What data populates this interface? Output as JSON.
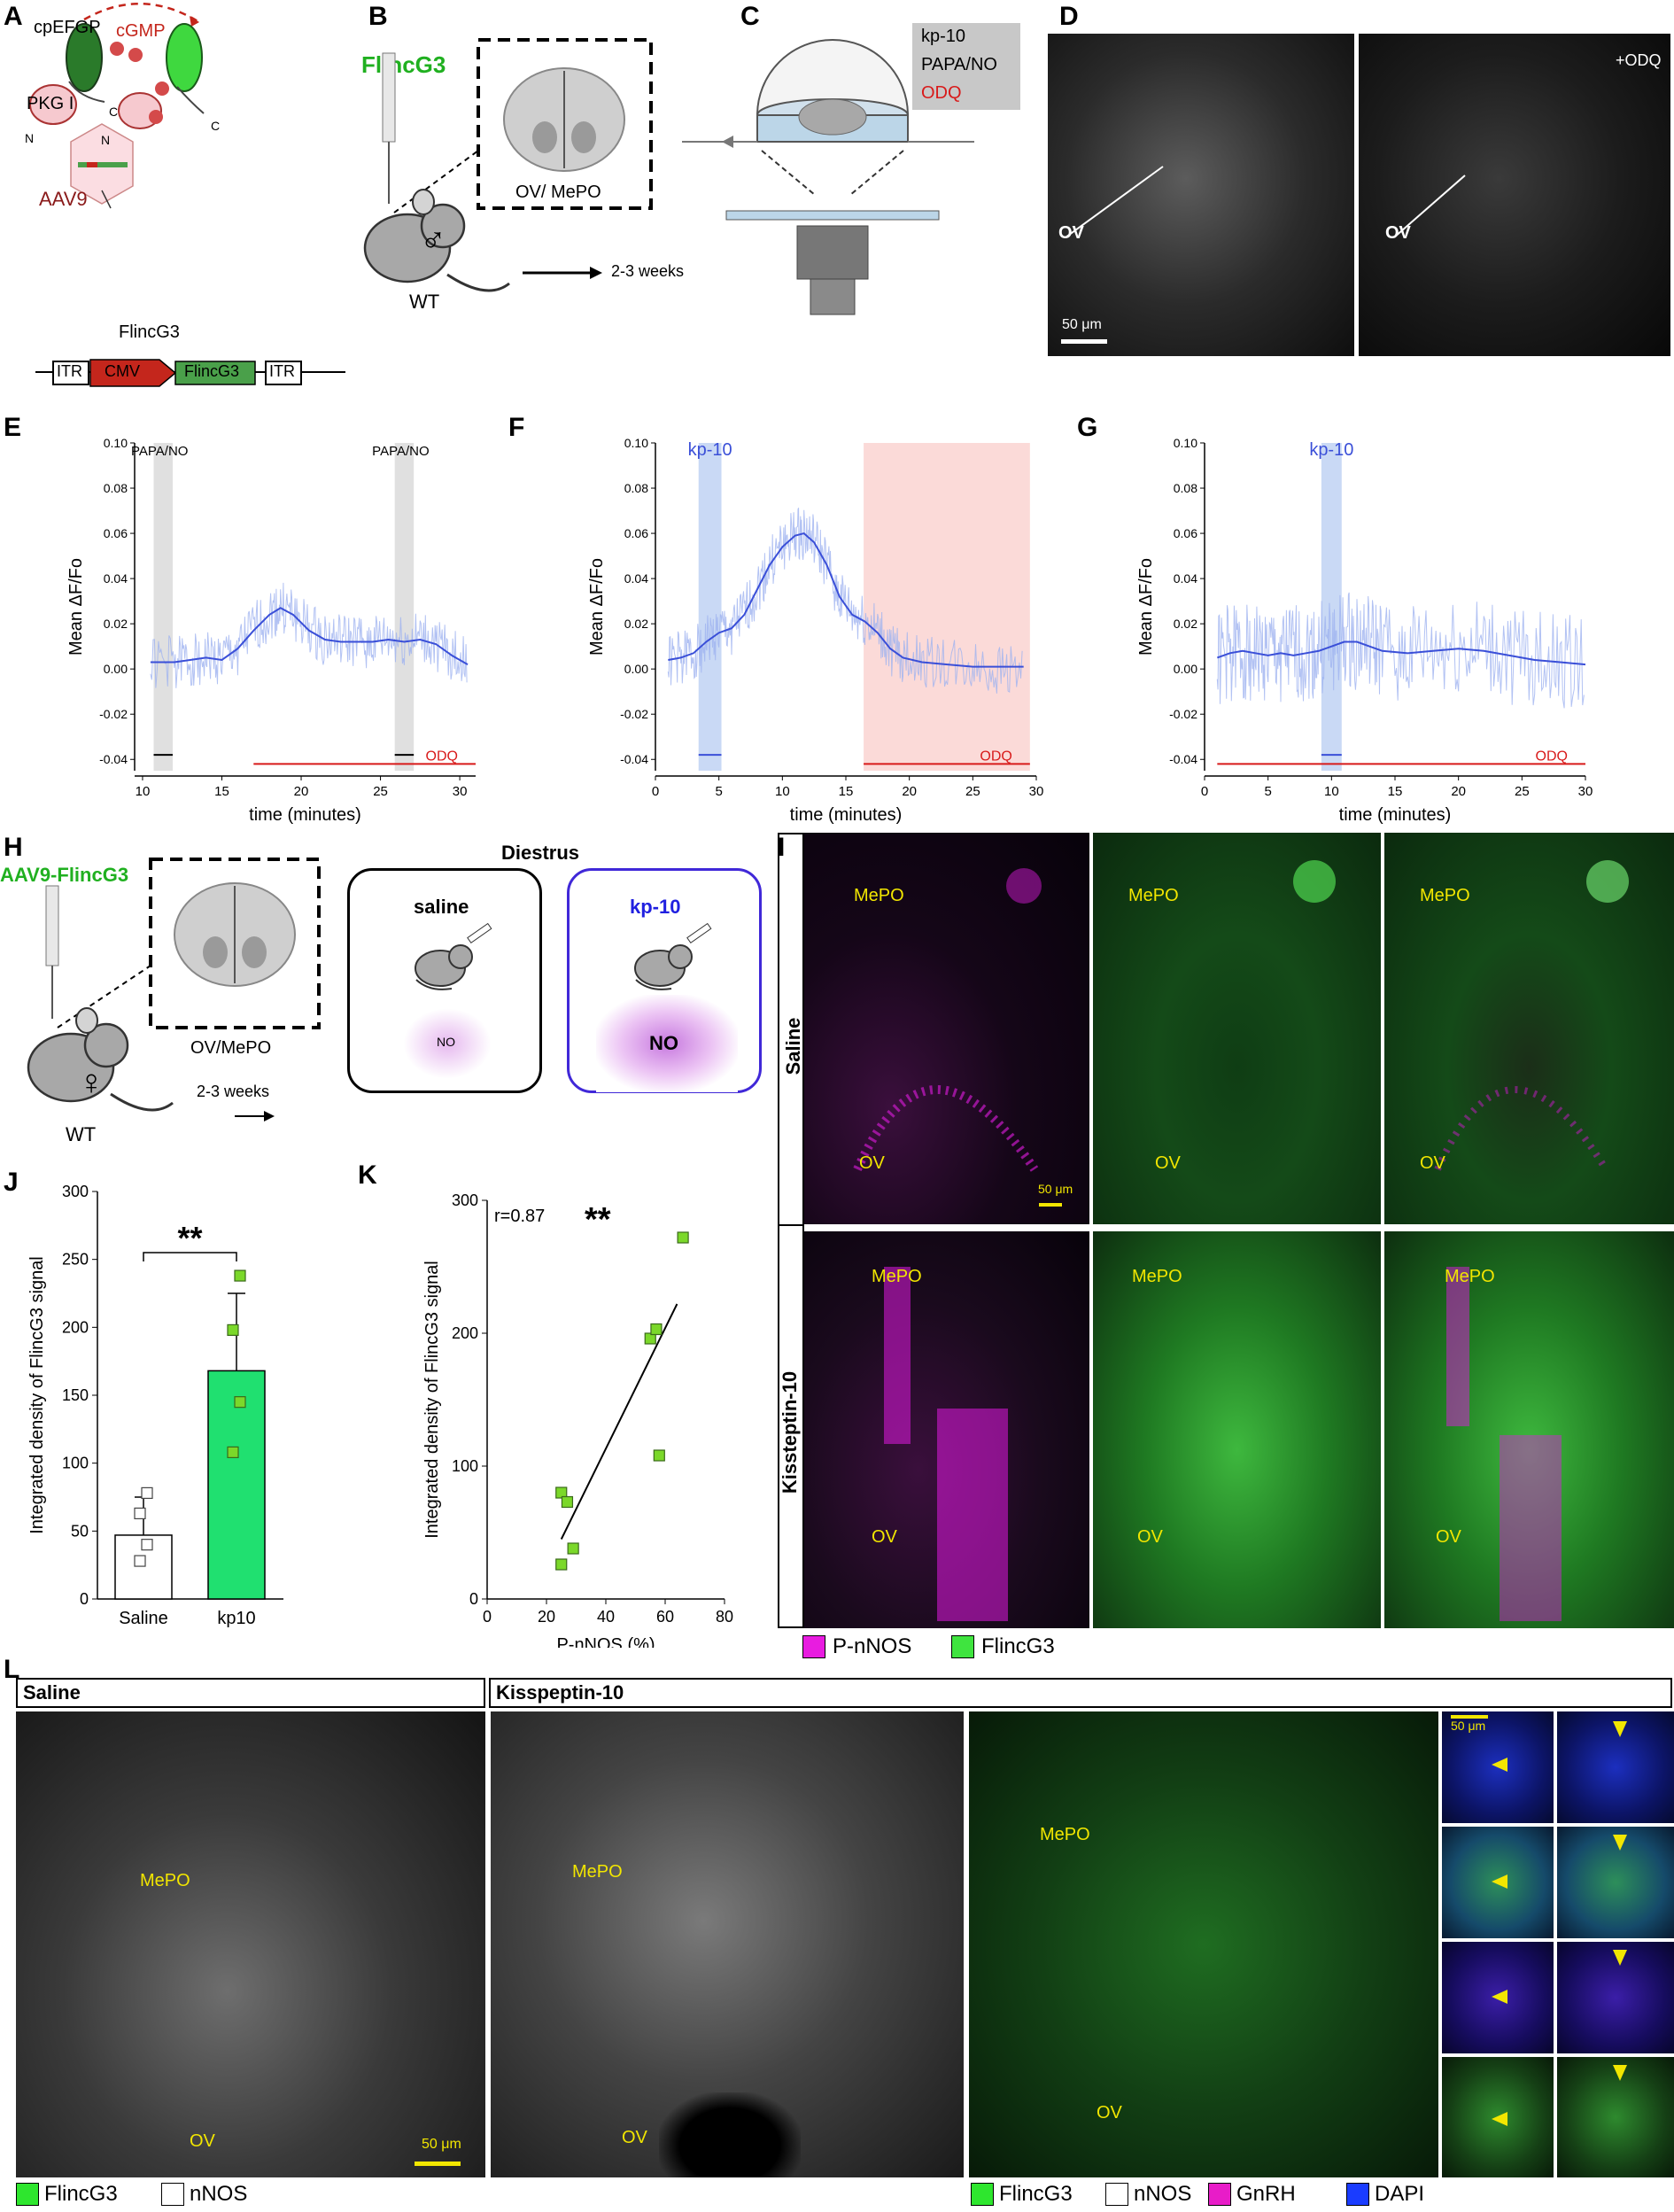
{
  "panels": {
    "A": {
      "label": "A",
      "cpEFGP": "cpEFGP",
      "cGMP": "cGMP",
      "PKG": "PKG I",
      "N": "N",
      "C": "C",
      "AAV9": "AAV9",
      "FlincG3": "FlincG3",
      "construct": [
        "ITR",
        "CMV",
        "FlincG3",
        "ITR"
      ]
    },
    "B": {
      "label": "B",
      "title": "FlincG3",
      "region": "OV/ MePO",
      "mouse": "WT",
      "sex_symbol": "♂",
      "arrow": "2-3 weeks"
    },
    "C": {
      "label": "C",
      "legend": [
        "kp-10",
        "PAPA/NO",
        "ODQ"
      ]
    },
    "D": {
      "label": "D",
      "ov_left": "OV",
      "ov_right": "OV",
      "odq": "+ODQ",
      "scale": "50 μm"
    },
    "H": {
      "label": "H",
      "virus": "AAV9-FlincG3",
      "region": "OV/MePO",
      "mouse": "WT",
      "sex_symbol": "♀",
      "arrow": "2-3 weeks",
      "stage": "Diestrus",
      "box1_title": "saline",
      "box1_no": "NO",
      "box2_title": "kp-10",
      "box2_no": "NO"
    },
    "I": {
      "label": "I",
      "rows": [
        "Saline",
        "Kissteptin-10"
      ],
      "mepo": "MePO",
      "ov": "OV",
      "scale": "50 μm",
      "legend": [
        {
          "name": "P-nNOS",
          "color": "#e81ce0"
        },
        {
          "name": "FlincG3",
          "color": "#3fe43f"
        }
      ]
    },
    "L": {
      "label": "L",
      "hdr_saline": "Saline",
      "hdr_kp": "Kisspeptin-10",
      "mepo": "MePO",
      "ov": "OV",
      "scale": "50 μm",
      "legend_left": [
        {
          "name": "FlincG3",
          "color": "#2ee62e"
        },
        {
          "name": "nNOS",
          "color": "#ffffff"
        }
      ],
      "legend_right": [
        {
          "name": "FlincG3",
          "color": "#2ee62e"
        },
        {
          "name": "nNOS",
          "color": "#ffffff"
        },
        {
          "name": "GnRH",
          "color": "#e81cc8"
        },
        {
          "name": "DAPI",
          "color": "#1a3cff"
        }
      ]
    }
  },
  "colors": {
    "pink": "#f6c9cf",
    "green_bright": "#20e070",
    "red": "#c4261c",
    "blue_trace": "#3a4fd8",
    "blue_shade": "#c9d9f5",
    "red_shade": "#fbdad8",
    "grey_shade": "#e0e0e0",
    "odq": "#d81a1a"
  },
  "chart_data": [
    {
      "panel": "E",
      "type": "line",
      "xlabel": "time (minutes)",
      "ylabel": "Mean ΔF/Fo",
      "xlim": [
        9.5,
        31
      ],
      "ylim": [
        -0.045,
        0.1
      ],
      "xticks": [
        10,
        15,
        20,
        25,
        30
      ],
      "yticks": [
        -0.04,
        -0.02,
        0.0,
        0.02,
        0.04,
        0.06,
        0.08,
        0.1
      ],
      "ytick_labels": [
        "-0.04",
        "-0.02",
        "0.00",
        "0.02",
        "0.04",
        "0.06",
        "0.08",
        "0.10"
      ],
      "annotations": [
        {
          "text": "PAPA/NO",
          "x": [
            10.7,
            11.9
          ]
        },
        {
          "text": "PAPA/NO",
          "x": [
            25.9,
            27.1
          ]
        }
      ],
      "odq": {
        "text": "ODQ",
        "x": [
          17,
          31
        ]
      },
      "series": [
        {
          "x": [
            10.5,
            12,
            13,
            14,
            15,
            16,
            17,
            18,
            18.7,
            19.5,
            20.5,
            21.5,
            22.5,
            23.5,
            24.5,
            25.5,
            26.5,
            27.5,
            28.5,
            29.5,
            30.5
          ],
          "y": [
            0.003,
            0.003,
            0.004,
            0.005,
            0.004,
            0.009,
            0.017,
            0.024,
            0.027,
            0.024,
            0.017,
            0.013,
            0.012,
            0.012,
            0.012,
            0.013,
            0.012,
            0.013,
            0.011,
            0.006,
            0.002
          ]
        }
      ]
    },
    {
      "panel": "F",
      "type": "line",
      "xlabel": "time (minutes)",
      "ylabel": "Mean ΔF/Fo",
      "xlim": [
        0,
        30
      ],
      "ylim": [
        -0.045,
        0.1
      ],
      "xticks": [
        0,
        5,
        10,
        15,
        20,
        25,
        30
      ],
      "yticks": [
        -0.04,
        -0.02,
        0.0,
        0.02,
        0.04,
        0.06,
        0.08,
        0.1
      ],
      "ytick_labels": [
        "-0.04",
        "-0.02",
        "0.00",
        "0.02",
        "0.04",
        "0.06",
        "0.08",
        "0.10"
      ],
      "annotations": [
        {
          "text": "kp-10",
          "x": [
            3.4,
            5.2
          ]
        }
      ],
      "odq": {
        "text": "ODQ",
        "x": [
          16.4,
          29.5
        ]
      },
      "series": [
        {
          "x": [
            1,
            2,
            3,
            4,
            5,
            6,
            7,
            8,
            9,
            10,
            11,
            11.7,
            12.5,
            13.5,
            14.5,
            15.5,
            16.5,
            17.5,
            18.5,
            19.5,
            21,
            23,
            25,
            27,
            29
          ],
          "y": [
            0.004,
            0.005,
            0.007,
            0.012,
            0.016,
            0.018,
            0.024,
            0.035,
            0.046,
            0.054,
            0.059,
            0.06,
            0.056,
            0.046,
            0.032,
            0.024,
            0.021,
            0.016,
            0.009,
            0.005,
            0.003,
            0.002,
            0.001,
            0.001,
            0.001
          ]
        }
      ]
    },
    {
      "panel": "G",
      "type": "line",
      "xlabel": "time (minutes)",
      "ylabel": "Mean ΔF/Fo",
      "xlim": [
        0,
        30
      ],
      "ylim": [
        -0.045,
        0.1
      ],
      "xticks": [
        0,
        5,
        10,
        15,
        20,
        25,
        30
      ],
      "yticks": [
        -0.04,
        -0.02,
        0.0,
        0.02,
        0.04,
        0.06,
        0.08,
        0.1
      ],
      "ytick_labels": [
        "-0.04",
        "-0.02",
        "0.00",
        "0.02",
        "0.04",
        "0.06",
        "0.08",
        "0.10"
      ],
      "annotations": [
        {
          "text": "kp-10",
          "x": [
            9.2,
            10.8
          ]
        }
      ],
      "odq": {
        "text": "ODQ",
        "x": [
          1,
          30
        ]
      },
      "series": [
        {
          "x": [
            1,
            2,
            3,
            4,
            5,
            6,
            7,
            8,
            9,
            10,
            11,
            12,
            13,
            14,
            16,
            18,
            20,
            22,
            24,
            26,
            28,
            30
          ],
          "y": [
            0.005,
            0.007,
            0.008,
            0.007,
            0.006,
            0.007,
            0.006,
            0.007,
            0.008,
            0.01,
            0.012,
            0.012,
            0.01,
            0.008,
            0.007,
            0.008,
            0.009,
            0.008,
            0.006,
            0.004,
            0.003,
            0.002
          ]
        }
      ]
    },
    {
      "panel": "J",
      "type": "bar",
      "ylabel": "Integrated density of FlincG3 signal",
      "ylim": [
        0,
        300
      ],
      "yticks": [
        0,
        50,
        100,
        150,
        200,
        250,
        300
      ],
      "categories": [
        "Saline",
        "kp10"
      ],
      "values": [
        47,
        168
      ],
      "errors": [
        28,
        57
      ],
      "significance": "**",
      "points": [
        [
          28,
          40,
          63,
          78
        ],
        [
          108,
          145,
          198,
          238
        ]
      ]
    },
    {
      "panel": "K",
      "type": "scatter",
      "xlabel": "P-nNOS (%)",
      "ylabel": "Integrated density of FlincG3 signal",
      "xlim": [
        0,
        80
      ],
      "ylim": [
        0,
        300
      ],
      "xticks": [
        0,
        20,
        40,
        60,
        80
      ],
      "yticks": [
        0,
        100,
        200,
        300
      ],
      "r": "r=0.87",
      "significance": "**",
      "points": [
        [
          25,
          80
        ],
        [
          27,
          73
        ],
        [
          29,
          38
        ],
        [
          25,
          26
        ],
        [
          58,
          108
        ],
        [
          55,
          196
        ],
        [
          57,
          203
        ],
        [
          66,
          272
        ]
      ],
      "fit": [
        [
          25,
          45
        ],
        [
          64,
          222
        ]
      ]
    }
  ]
}
